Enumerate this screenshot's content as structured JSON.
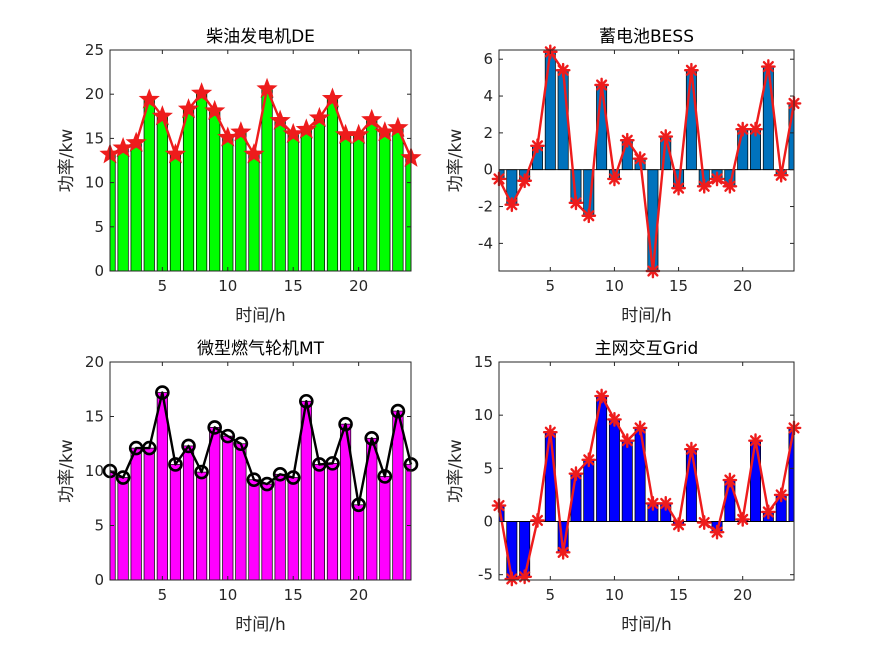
{
  "chart_data": [
    {
      "type": "bar",
      "title": "柴油发电机DE",
      "xlabel": "时间/h",
      "ylabel": "功率/kw",
      "xlim": [
        1,
        24
      ],
      "ylim": [
        0,
        25
      ],
      "xticks": [
        5,
        10,
        15,
        20
      ],
      "yticks": [
        0,
        5,
        10,
        15,
        20,
        25
      ],
      "bar_color": "#00ff00",
      "line_color": "#ee1c1c",
      "marker": "star",
      "x": [
        1,
        2,
        3,
        4,
        5,
        6,
        7,
        8,
        9,
        10,
        11,
        12,
        13,
        14,
        15,
        16,
        17,
        18,
        19,
        20,
        21,
        22,
        23,
        24
      ],
      "values": [
        13.2,
        13.9,
        14.5,
        19.4,
        17.5,
        13.2,
        18.3,
        20.1,
        18.1,
        15.1,
        15.7,
        13.2,
        20.6,
        17.0,
        15.5,
        16.0,
        17.3,
        19.5,
        15.4,
        15.4,
        17.1,
        15.7,
        16.2,
        12.8
      ]
    },
    {
      "type": "bar",
      "title": "蓄电池BESS",
      "xlabel": "时间/h",
      "ylabel": "功率/kw",
      "xlim": [
        1,
        24
      ],
      "ylim": [
        -5.5,
        6.5
      ],
      "xticks": [
        5,
        10,
        15,
        20
      ],
      "yticks": [
        -4,
        -2,
        0,
        2,
        4,
        6
      ],
      "bar_color": "#0072bd",
      "line_color": "#ee1c1c",
      "marker": "asterisk",
      "x": [
        1,
        2,
        3,
        4,
        5,
        6,
        7,
        8,
        9,
        10,
        11,
        12,
        13,
        14,
        15,
        16,
        17,
        18,
        19,
        20,
        21,
        22,
        23,
        24
      ],
      "values": [
        -0.5,
        -1.9,
        -0.6,
        1.3,
        6.4,
        5.4,
        -1.8,
        -2.5,
        4.6,
        -0.5,
        1.6,
        0.6,
        -5.5,
        1.8,
        -1.0,
        5.4,
        -0.9,
        -0.5,
        -0.9,
        2.2,
        2.2,
        5.6,
        -0.3,
        3.6
      ]
    },
    {
      "type": "bar",
      "title": "微型燃气轮机MT",
      "xlabel": "时间/h",
      "ylabel": "功率/kw",
      "xlim": [
        1,
        24
      ],
      "ylim": [
        0,
        20
      ],
      "xticks": [
        5,
        10,
        15,
        20
      ],
      "yticks": [
        0,
        5,
        10,
        15,
        20
      ],
      "bar_color": "#ff00ff",
      "line_color": "#000000",
      "marker": "circle",
      "x": [
        1,
        2,
        3,
        4,
        5,
        6,
        7,
        8,
        9,
        10,
        11,
        12,
        13,
        14,
        15,
        16,
        17,
        18,
        19,
        20,
        21,
        22,
        23,
        24
      ],
      "values": [
        10.0,
        9.4,
        12.1,
        12.1,
        17.2,
        10.6,
        12.3,
        9.9,
        14.0,
        13.2,
        12.5,
        9.2,
        8.8,
        9.7,
        9.4,
        16.4,
        10.6,
        10.7,
        14.3,
        6.9,
        13.0,
        9.5,
        15.5,
        10.6
      ]
    },
    {
      "type": "bar",
      "title": "主网交互Grid",
      "xlabel": "时间/h",
      "ylabel": "功率/kw",
      "xlim": [
        1,
        24
      ],
      "ylim": [
        -5.5,
        15
      ],
      "xticks": [
        5,
        10,
        15,
        20
      ],
      "yticks": [
        -5,
        0,
        5,
        10,
        15
      ],
      "bar_color": "#0000ff",
      "line_color": "#ee1c1c",
      "marker": "asterisk",
      "x": [
        1,
        2,
        3,
        4,
        5,
        6,
        7,
        8,
        9,
        10,
        11,
        12,
        13,
        14,
        15,
        16,
        17,
        18,
        19,
        20,
        21,
        22,
        23,
        24
      ],
      "values": [
        1.5,
        -5.4,
        -5.2,
        0.1,
        8.4,
        -2.9,
        4.5,
        5.8,
        11.8,
        9.6,
        7.6,
        8.8,
        1.7,
        1.7,
        -0.3,
        6.8,
        -0.1,
        -1.0,
        3.9,
        0.2,
        7.6,
        0.9,
        2.5,
        8.8
      ]
    }
  ]
}
